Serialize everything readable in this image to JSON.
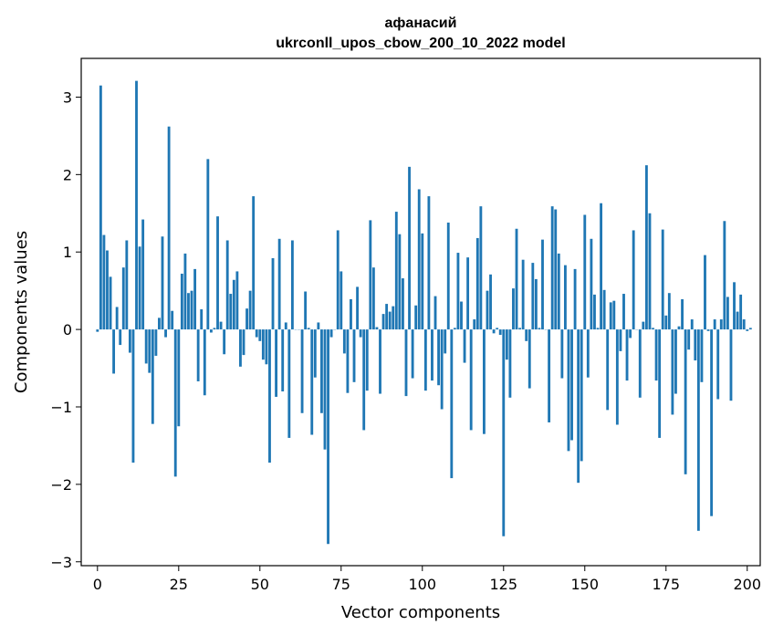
{
  "chart_data": {
    "type": "bar",
    "title_line1": "афанасий",
    "title_line2": "ukrconll_upos_cbow_200_10_2022 model",
    "xlabel": "Vector components",
    "ylabel": "Components values",
    "xlim": [
      -5,
      204
    ],
    "ylim": [
      -3.05,
      3.5
    ],
    "xticks": [
      0,
      25,
      50,
      75,
      100,
      125,
      150,
      175,
      200
    ],
    "xtick_labels": [
      "0",
      "25",
      "50",
      "75",
      "100",
      "125",
      "150",
      "175",
      "200"
    ],
    "yticks": [
      -3,
      -2,
      -1,
      0,
      1,
      2,
      3
    ],
    "ytick_labels": [
      "−3",
      "−2",
      "−1",
      "0",
      "1",
      "2",
      "3"
    ],
    "grid": false,
    "bar_color": "#1f77b4",
    "values": [
      -0.03,
      3.15,
      1.22,
      1.02,
      0.68,
      -0.57,
      0.29,
      -0.2,
      0.8,
      1.15,
      -0.3,
      -1.72,
      3.21,
      1.07,
      1.42,
      -0.44,
      -0.56,
      -1.22,
      -0.34,
      0.15,
      1.2,
      -0.1,
      2.62,
      0.24,
      -1.9,
      -1.25,
      0.72,
      0.98,
      0.47,
      0.5,
      0.78,
      -0.67,
      0.26,
      -0.85,
      2.2,
      -0.04,
      0.02,
      1.46,
      0.1,
      -0.32,
      1.15,
      0.46,
      0.64,
      0.75,
      -0.48,
      -0.33,
      0.27,
      0.5,
      1.72,
      -0.1,
      -0.15,
      -0.39,
      -0.45,
      -1.72,
      0.92,
      -0.87,
      1.17,
      -0.8,
      0.09,
      -1.4,
      1.15,
      0.0,
      0.0,
      -1.08,
      0.49,
      0.02,
      -1.36,
      -0.62,
      0.09,
      -1.08,
      -1.55,
      -2.77,
      -0.1,
      0.0,
      1.28,
      0.75,
      -0.31,
      -0.82,
      0.39,
      -0.68,
      0.55,
      -0.1,
      -1.3,
      -0.79,
      1.41,
      0.8,
      0.03,
      -0.83,
      0.2,
      0.33,
      0.23,
      0.3,
      1.52,
      1.23,
      0.66,
      -0.86,
      2.1,
      -0.63,
      0.31,
      1.81,
      1.24,
      -0.79,
      1.72,
      -0.66,
      0.43,
      -0.72,
      -1.03,
      -0.31,
      1.38,
      -1.92,
      0.02,
      0.99,
      0.36,
      -0.43,
      0.93,
      -1.3,
      0.13,
      1.18,
      1.59,
      -1.35,
      0.5,
      0.71,
      -0.05,
      0.02,
      -0.07,
      -2.67,
      -0.39,
      -0.88,
      0.53,
      1.3,
      0.02,
      0.9,
      -0.15,
      -0.76,
      0.86,
      0.65,
      0.02,
      1.16,
      0.0,
      -1.2,
      1.59,
      1.55,
      0.98,
      -0.63,
      0.83,
      -1.57,
      -1.43,
      0.78,
      -1.98,
      -1.7,
      1.48,
      -0.62,
      1.17,
      0.45,
      0.02,
      1.63,
      0.51,
      -1.04,
      0.35,
      0.37,
      -1.23,
      -0.28,
      0.46,
      -0.66,
      -0.11,
      1.28,
      0.0,
      -0.88,
      0.1,
      2.12,
      1.5,
      0.02,
      -0.66,
      -1.4,
      1.29,
      0.18,
      0.47,
      -1.1,
      -0.83,
      0.04,
      0.39,
      -1.87,
      -0.26,
      0.13,
      -0.4,
      -2.6,
      -0.68,
      0.96,
      -0.02,
      -2.41,
      0.13,
      -0.9,
      0.13,
      1.4,
      0.42,
      -0.92,
      0.61,
      0.23,
      0.45,
      0.13,
      -0.02,
      0.02
    ]
  }
}
